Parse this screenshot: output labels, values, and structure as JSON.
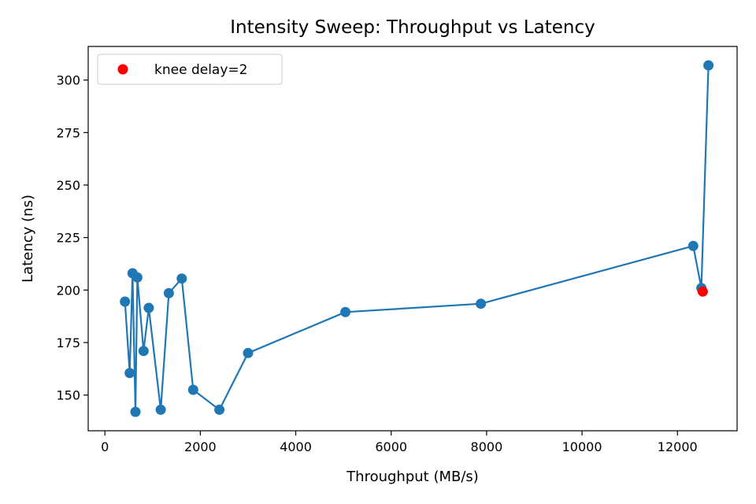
{
  "chart_data": {
    "type": "line",
    "title": "Intensity Sweep: Throughput vs Latency",
    "xlabel": "Throughput (MB/s)",
    "ylabel": "Latency (ns)",
    "xlim": [
      -350,
      13250
    ],
    "ylim": [
      133,
      316
    ],
    "x_ticks": [
      0,
      2000,
      4000,
      6000,
      8000,
      10000,
      12000
    ],
    "x_tick_labels": [
      "0",
      "2000",
      "4000",
      "6000",
      "8000",
      "10000",
      "12000"
    ],
    "y_ticks": [
      150,
      175,
      200,
      225,
      250,
      275,
      300
    ],
    "y_tick_labels": [
      "150",
      "175",
      "200",
      "225",
      "250",
      "275",
      "300"
    ],
    "grid": false,
    "legend_position": "top-left",
    "series": [
      {
        "color": "#1f77b4",
        "marker": "circle",
        "x": [
          12650,
          12500,
          12330,
          7880,
          5040,
          3000,
          2400,
          1850,
          1610,
          1340,
          1170,
          920,
          810,
          680,
          640,
          580,
          520,
          420
        ],
        "y": [
          307,
          201,
          221,
          193.5,
          189.5,
          170,
          143,
          152.5,
          205.5,
          198.5,
          143,
          191.5,
          171,
          206,
          142,
          208,
          160.5,
          194.5
        ]
      },
      {
        "name": "knee delay=2",
        "color": "#ff0000",
        "marker": "circle",
        "type": "scatter",
        "x": [
          12530
        ],
        "y": [
          199.3
        ]
      }
    ]
  }
}
